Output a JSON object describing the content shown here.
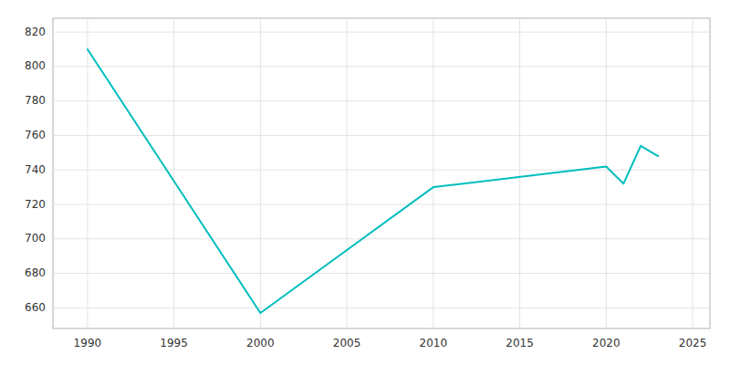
{
  "chart_data": {
    "type": "line",
    "x": [
      1990,
      2000,
      2010,
      2020,
      2021,
      2022,
      2023
    ],
    "values": [
      810,
      657,
      730,
      742,
      732,
      754,
      748
    ],
    "color": "#00BEBE",
    "xlim": [
      1988,
      2026
    ],
    "ylim": [
      648,
      828
    ],
    "xticks": [
      1990,
      1995,
      2000,
      2005,
      2010,
      2015,
      2020,
      2025
    ],
    "yticks": [
      660,
      680,
      700,
      720,
      740,
      760,
      780,
      800,
      820
    ],
    "grid": true
  }
}
